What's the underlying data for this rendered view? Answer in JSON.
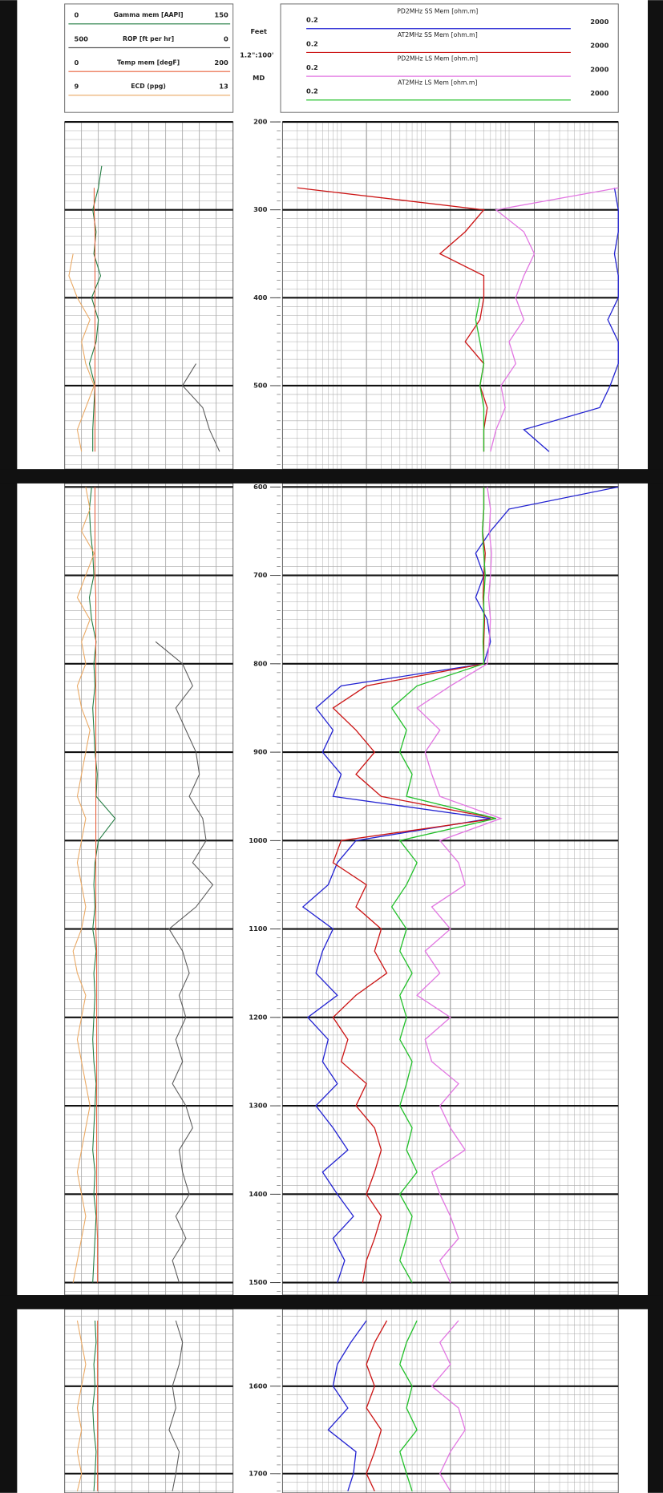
{
  "chart_data": {
    "type": "well-log",
    "depth_unit": "Feet",
    "depth_scale": "1.2\":100'",
    "depth_ref": "MD",
    "x": [
      250,
      275,
      300,
      325,
      350,
      375,
      400,
      425,
      450,
      475,
      500,
      525,
      550,
      575,
      600,
      625,
      650,
      675,
      700,
      725,
      750,
      775,
      800,
      825,
      850,
      875,
      900,
      925,
      950,
      975,
      1000,
      1025,
      1050,
      1075,
      1100,
      1125,
      1150,
      1175,
      1200,
      1225,
      1250,
      1275,
      1300,
      1325,
      1350,
      1375,
      1400,
      1425,
      1450,
      1475,
      1500,
      1525,
      1550,
      1575,
      1600,
      1625,
      1650,
      1675,
      1700,
      1720
    ],
    "ylims": [
      [
        200,
        595
      ],
      [
        596,
        1514
      ],
      [
        1512,
        1722
      ]
    ],
    "yticks": [
      200,
      300,
      400,
      500,
      600,
      700,
      800,
      900,
      1000,
      1100,
      1200,
      1300,
      1400,
      1500,
      1600,
      1700
    ],
    "minor_grid_step": 10,
    "grid": true,
    "tracks": [
      {
        "log": false,
        "grid_divisions": 10,
        "curves": [
          {
            "name": "Gamma mem [AAPI]",
            "color": "#1f7a3f",
            "xlim": [
              0,
              150
            ],
            "values": [
              33,
              30,
              25,
              28,
              26,
              32,
              24,
              30,
              28,
              22,
              27,
              26,
              25,
              25,
              24,
              22,
              23,
              25,
              26,
              22,
              24,
              28,
              26,
              27,
              25,
              26,
              27,
              29,
              28,
              45,
              30,
              27,
              26,
              27,
              25,
              28,
              26,
              27,
              26,
              25,
              26,
              28,
              27,
              26,
              25,
              27,
              26,
              28,
              27,
              26,
              25,
              27,
              28,
              26,
              27,
              25,
              26,
              28,
              27,
              26
            ]
          },
          {
            "name": "ROP [ft per hr]",
            "color": "#5a5a5a",
            "xlim": [
              500,
              0
            ],
            "values": [
              null,
              null,
              null,
              null,
              null,
              null,
              null,
              null,
              null,
              110,
              150,
              90,
              70,
              40,
              10,
              null,
              null,
              null,
              null,
              null,
              null,
              230,
              150,
              120,
              170,
              140,
              110,
              100,
              130,
              90,
              80,
              120,
              60,
              110,
              190,
              150,
              130,
              160,
              140,
              170,
              150,
              180,
              140,
              120,
              160,
              150,
              130,
              170,
              140,
              180,
              160,
              170,
              150,
              160,
              180,
              170,
              190,
              160,
              170,
              180
            ]
          },
          {
            "name": "Temp mem [degF]",
            "color": "#e8603c",
            "xlim": [
              0,
              200
            ],
            "values": [
              null,
              35,
              35,
              36,
              36,
              36,
              36,
              36,
              36,
              36,
              36,
              36,
              36,
              36,
              36,
              36,
              36,
              36,
              36,
              37,
              37,
              37,
              37,
              37,
              37,
              37,
              37,
              37,
              37,
              37,
              37,
              37,
              37,
              37,
              37,
              38,
              38,
              38,
              38,
              38,
              38,
              38,
              38,
              38,
              38,
              38,
              38,
              38,
              39,
              39,
              39,
              39,
              39,
              39,
              39,
              39,
              39,
              39,
              39,
              39
            ]
          },
          {
            "name": "ECD (ppg)",
            "color": "#eaa862",
            "xlim": [
              9,
              13
            ],
            "values": [
              null,
              null,
              null,
              null,
              9.2,
              9.1,
              9.3,
              9.6,
              9.4,
              9.5,
              9.7,
              9.5,
              9.3,
              9.4,
              9.5,
              9.6,
              9.4,
              9.7,
              9.5,
              9.3,
              9.6,
              9.4,
              9.5,
              9.3,
              9.4,
              9.6,
              9.5,
              9.4,
              9.3,
              9.5,
              9.4,
              9.3,
              9.4,
              9.5,
              9.4,
              9.2,
              9.3,
              9.5,
              9.4,
              9.3,
              9.4,
              9.5,
              9.6,
              9.5,
              9.4,
              9.3,
              9.4,
              9.5,
              9.4,
              9.3,
              9.2,
              9.3,
              9.4,
              9.5,
              9.4,
              9.3,
              9.4,
              9.3,
              9.4,
              9.3
            ]
          }
        ]
      },
      {
        "log": true,
        "curves": [
          {
            "name": "PD2MHz SS Mem [ohm.m]",
            "color": "#2323d2",
            "xlim": [
              0.2,
              2000
            ],
            "values": [
              null,
              1800,
              2000,
              2000,
              1800,
              2000,
              2000,
              1500,
              2000,
              2000,
              1600,
              1200,
              150,
              300,
              2000,
              100,
              60,
              40,
              50,
              40,
              55,
              60,
              50,
              1.0,
              0.5,
              0.8,
              0.6,
              1.0,
              0.8,
              60,
              1.5,
              0.9,
              0.7,
              0.35,
              0.8,
              0.6,
              0.5,
              0.9,
              0.4,
              0.7,
              0.6,
              0.9,
              0.5,
              0.8,
              1.2,
              0.6,
              0.9,
              1.4,
              0.8,
              1.1,
              0.9,
              2.0,
              1.3,
              0.9,
              0.8,
              1.2,
              0.7,
              1.5,
              1.4,
              1.2
            ]
          },
          {
            "name": "AT2MHz SS Mem [ohm.m]",
            "color": "#cc1414",
            "xlim": [
              0.2,
              2000
            ],
            "values": [
              null,
              0.3,
              50,
              30,
              15,
              50,
              50,
              45,
              30,
              50,
              45,
              55,
              50,
              50,
              50,
              50,
              48,
              52,
              50,
              49,
              51,
              50,
              50,
              2.0,
              0.8,
              1.5,
              2.5,
              1.5,
              3.0,
              70,
              1.0,
              0.8,
              2.0,
              1.5,
              3.0,
              2.5,
              3.5,
              1.5,
              0.8,
              1.2,
              1.0,
              2.0,
              1.5,
              2.5,
              3.0,
              2.5,
              2.0,
              3.0,
              2.5,
              2.0,
              1.8,
              3.5,
              2.5,
              2.0,
              2.5,
              2.0,
              3.0,
              2.5,
              2.0,
              2.5
            ]
          },
          {
            "name": "PD2MHz LS Mem [ohm.m]",
            "color": "#e276e2",
            "xlim": [
              0.2,
              2000
            ],
            "values": [
              null,
              2000,
              70,
              150,
              200,
              150,
              120,
              150,
              100,
              120,
              80,
              90,
              70,
              60,
              55,
              60,
              58,
              62,
              60,
              57,
              60,
              58,
              55,
              20,
              8,
              15,
              10,
              12,
              15,
              80,
              15,
              25,
              30,
              12,
              20,
              10,
              15,
              8,
              20,
              10,
              12,
              25,
              15,
              20,
              30,
              12,
              15,
              20,
              25,
              15,
              20,
              25,
              15,
              20,
              12,
              25,
              30,
              20,
              15,
              20
            ]
          },
          {
            "name": "AT2MHz LS Mem [ohm.m]",
            "color": "#22c02a",
            "xlim": [
              0.2,
              2000
            ],
            "values": [
              null,
              null,
              null,
              null,
              null,
              null,
              45,
              40,
              45,
              50,
              45,
              50,
              50,
              50,
              50,
              50,
              48,
              50,
              52,
              50,
              50,
              49,
              50,
              8,
              4,
              6,
              5,
              7,
              6,
              70,
              5,
              8,
              6,
              4,
              6,
              5,
              7,
              5,
              6,
              5,
              7,
              6,
              5,
              7,
              6,
              8,
              5,
              7,
              6,
              5,
              7,
              8,
              6,
              5,
              7,
              6,
              8,
              5,
              6,
              7
            ]
          }
        ]
      }
    ]
  }
}
